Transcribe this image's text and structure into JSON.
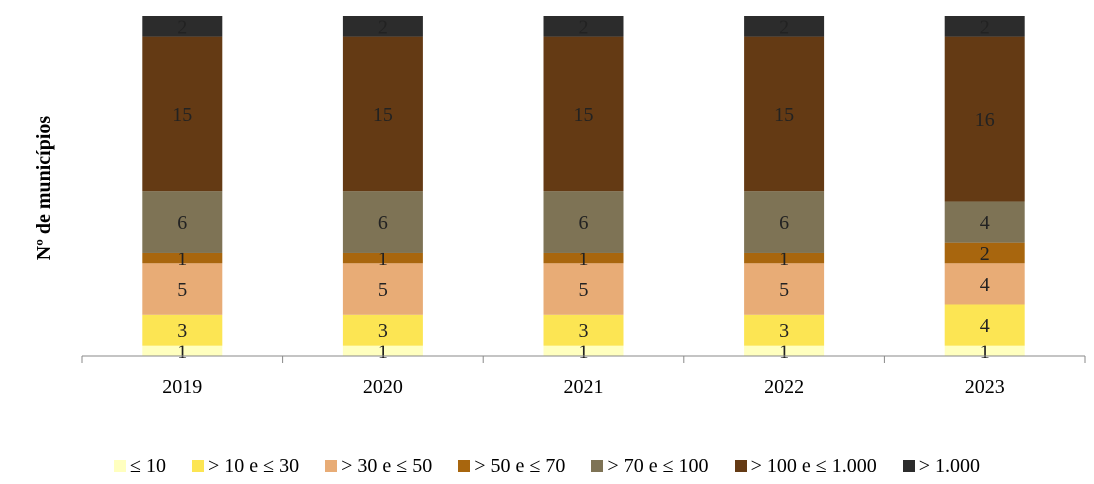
{
  "chart_data": {
    "type": "bar",
    "stacked": true,
    "title": "",
    "xlabel": "",
    "ylabel": "Nº de municípios",
    "categories": [
      "2019",
      "2020",
      "2021",
      "2022",
      "2023"
    ],
    "ylim": [
      0,
      33
    ],
    "grid": false,
    "legend_position": "bottom",
    "series": [
      {
        "name": "≤ 10",
        "color": "#FFFFBF",
        "values": [
          1,
          1,
          1,
          1,
          1
        ]
      },
      {
        "name": "> 10 e ≤ 30",
        "color": "#FCE553",
        "values": [
          3,
          3,
          3,
          3,
          4
        ]
      },
      {
        "name": "> 30 e ≤ 50",
        "color": "#E8AC76",
        "values": [
          5,
          5,
          5,
          5,
          4
        ]
      },
      {
        "name": "> 50 e ≤ 70",
        "color": "#A8660E",
        "values": [
          1,
          1,
          1,
          1,
          2
        ]
      },
      {
        "name": "> 70 e ≤ 100",
        "color": "#7E7355",
        "values": [
          6,
          6,
          6,
          6,
          4
        ]
      },
      {
        "name": "> 100 e ≤ 1.000",
        "color": "#643A14",
        "values": [
          15,
          15,
          15,
          15,
          16
        ]
      },
      {
        "name": "> 1.000",
        "color": "#2C2C2C",
        "values": [
          2,
          2,
          2,
          2,
          2
        ]
      }
    ]
  }
}
